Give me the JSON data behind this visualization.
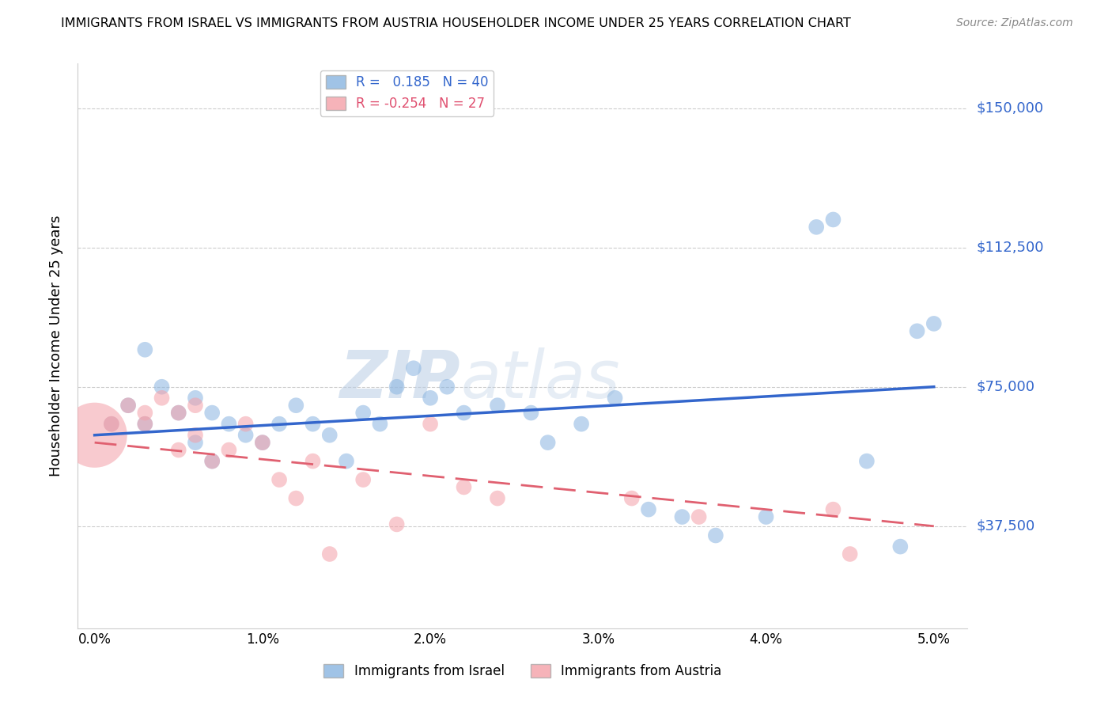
{
  "title": "IMMIGRANTS FROM ISRAEL VS IMMIGRANTS FROM AUSTRIA HOUSEHOLDER INCOME UNDER 25 YEARS CORRELATION CHART",
  "source": "Source: ZipAtlas.com",
  "xlabel_vals": [
    0.0,
    0.01,
    0.02,
    0.03,
    0.04,
    0.05
  ],
  "xlabel_labels": [
    "0.0%",
    "1.0%",
    "2.0%",
    "3.0%",
    "4.0%",
    "5.0%"
  ],
  "ylabel_vals": [
    37500,
    75000,
    112500,
    150000
  ],
  "ylabel_labels": [
    "$37,500",
    "$75,000",
    "$112,500",
    "$150,000"
  ],
  "ylabel_label": "Householder Income Under 25 years",
  "xlim": [
    -0.001,
    0.052
  ],
  "ylim": [
    10000,
    162000
  ],
  "legend_israel_r": "0.185",
  "legend_israel_n": "40",
  "legend_austria_r": "-0.254",
  "legend_austria_n": "27",
  "watermark_zip": "ZIP",
  "watermark_atlas": "atlas",
  "color_israel": "#89B4E0",
  "color_austria": "#F4A0A8",
  "color_israel_line": "#3366CC",
  "color_austria_line": "#E05070",
  "color_austria_line_dash": "#E06070",
  "israel_x": [
    0.001,
    0.002,
    0.003,
    0.003,
    0.004,
    0.005,
    0.006,
    0.006,
    0.007,
    0.007,
    0.008,
    0.009,
    0.01,
    0.011,
    0.012,
    0.013,
    0.014,
    0.015,
    0.016,
    0.017,
    0.018,
    0.019,
    0.02,
    0.021,
    0.022,
    0.024,
    0.026,
    0.027,
    0.029,
    0.031,
    0.033,
    0.035,
    0.037,
    0.04,
    0.043,
    0.044,
    0.046,
    0.048,
    0.049,
    0.05
  ],
  "israel_y": [
    65000,
    70000,
    85000,
    65000,
    75000,
    68000,
    72000,
    60000,
    68000,
    55000,
    65000,
    62000,
    60000,
    65000,
    70000,
    65000,
    62000,
    55000,
    68000,
    65000,
    75000,
    80000,
    72000,
    75000,
    68000,
    70000,
    68000,
    60000,
    65000,
    72000,
    42000,
    40000,
    35000,
    40000,
    118000,
    120000,
    55000,
    32000,
    90000,
    92000
  ],
  "israel_sizes": [
    200,
    200,
    200,
    200,
    200,
    200,
    200,
    200,
    200,
    200,
    200,
    200,
    200,
    200,
    200,
    200,
    200,
    200,
    200,
    200,
    200,
    200,
    200,
    200,
    200,
    200,
    200,
    200,
    200,
    200,
    200,
    200,
    200,
    200,
    200,
    200,
    200,
    200,
    200,
    200
  ],
  "austria_x": [
    0.0,
    0.001,
    0.002,
    0.003,
    0.003,
    0.004,
    0.005,
    0.005,
    0.006,
    0.006,
    0.007,
    0.008,
    0.009,
    0.01,
    0.011,
    0.012,
    0.013,
    0.014,
    0.016,
    0.018,
    0.02,
    0.022,
    0.024,
    0.032,
    0.036,
    0.044,
    0.045
  ],
  "austria_y": [
    62000,
    65000,
    70000,
    68000,
    65000,
    72000,
    68000,
    58000,
    62000,
    70000,
    55000,
    58000,
    65000,
    60000,
    50000,
    45000,
    55000,
    30000,
    50000,
    38000,
    65000,
    48000,
    45000,
    45000,
    40000,
    42000,
    30000
  ],
  "austria_sizes": [
    3500,
    200,
    200,
    200,
    200,
    200,
    200,
    200,
    200,
    200,
    200,
    200,
    200,
    200,
    200,
    200,
    200,
    200,
    200,
    200,
    200,
    200,
    200,
    200,
    200,
    200,
    200
  ]
}
